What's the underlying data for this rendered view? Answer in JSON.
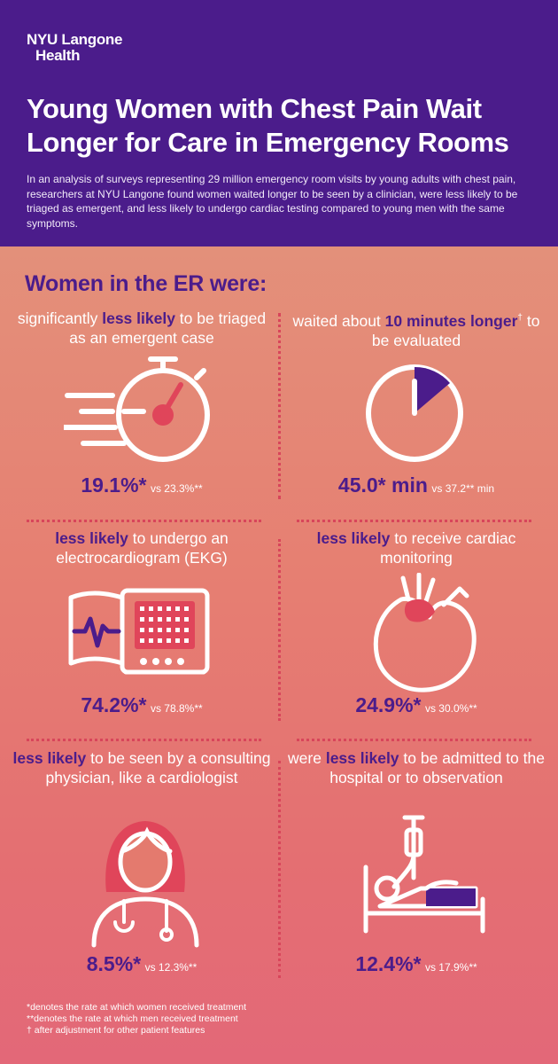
{
  "logo": {
    "line1": "NYU Langone",
    "line2": "Health"
  },
  "title": "Young Women with Chest Pain Wait Longer for Care in Emergency Rooms",
  "intro": "In an analysis of surveys representing 29 million emergency room visits by young adults with chest pain, researchers at NYU Langone found women waited longer to be seen by a clinician, were less likely to be triaged as emergent, and less likely to undergo cardiac testing compared to young men with the same symptoms.",
  "section_title": "Women in the ER were:",
  "cells": [
    {
      "pre": "significantly ",
      "bold": "less likely",
      "post": " to be triaged as an emergent case",
      "icon": "stopwatch-icon",
      "stat_big": "19.1%*",
      "stat_small": "vs 23.3%**"
    },
    {
      "pre": "waited about ",
      "bold": "10 minutes longer",
      "sup": "†",
      "post": " to be evaluated",
      "icon": "clock-icon",
      "stat_big": "45.0* min",
      "stat_small": "vs 37.2** min"
    },
    {
      "pre": "",
      "bold": "less likely",
      "post": " to undergo an electrocardiogram (EKG)",
      "icon": "ekg-machine-icon",
      "stat_big": "74.2%*",
      "stat_small": "vs 78.8%**"
    },
    {
      "pre": "",
      "bold": "less likely",
      "post": " to receive cardiac monitoring",
      "icon": "heart-icon",
      "stat_big": "24.9%*",
      "stat_small": "vs 30.0%**"
    },
    {
      "pre": "",
      "bold": "less likely",
      "post": " to be seen by a consulting physician, like a cardiologist",
      "icon": "physician-icon",
      "stat_big": "8.5%*",
      "stat_small": "vs 12.3%**"
    },
    {
      "pre": "were ",
      "bold": "less likely",
      "post": " to be admitted to the hospital or to observation",
      "icon": "hospital-bed-icon",
      "stat_big": "12.4%*",
      "stat_small": "vs 17.9%**"
    }
  ],
  "footnotes": [
    "*denotes the rate at which women received treatment",
    "**denotes the rate at which men received treatment",
    "† after adjustment for other patient features"
  ],
  "colors": {
    "purple": "#4b1c8b",
    "coral": "#e47a6e",
    "red_icon": "#e0455a"
  }
}
